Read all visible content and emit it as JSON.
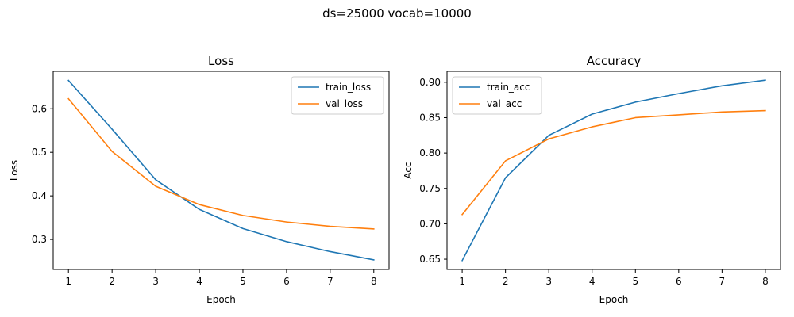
{
  "figure": {
    "suptitle": "ds=25000 vocab=10000"
  },
  "chart_data": [
    {
      "type": "line",
      "title": "Loss",
      "xlabel": "Epoch",
      "ylabel": "Loss",
      "x": [
        1,
        2,
        3,
        4,
        5,
        6,
        7,
        8
      ],
      "xlim": [
        0.65,
        8.35
      ],
      "ylim": [
        0.231,
        0.686
      ],
      "xticks": [
        1,
        2,
        3,
        4,
        5,
        6,
        7,
        8
      ],
      "yticks": [
        0.3,
        0.4,
        0.5,
        0.6
      ],
      "ytick_labels": [
        "0.3",
        "0.4",
        "0.5",
        "0.6"
      ],
      "grid": false,
      "legend": "top-right",
      "series": [
        {
          "name": "train_loss",
          "color": "#1f77b4",
          "values": [
            0.665,
            0.553,
            0.437,
            0.369,
            0.325,
            0.295,
            0.272,
            0.253
          ]
        },
        {
          "name": "val_loss",
          "color": "#ff7f0e",
          "values": [
            0.623,
            0.502,
            0.422,
            0.38,
            0.355,
            0.34,
            0.33,
            0.324
          ]
        }
      ]
    },
    {
      "type": "line",
      "title": "Accuracy",
      "xlabel": "Epoch",
      "ylabel": "Acc",
      "x": [
        1,
        2,
        3,
        4,
        5,
        6,
        7,
        8
      ],
      "xlim": [
        0.65,
        8.35
      ],
      "ylim": [
        0.6355,
        0.9155
      ],
      "xticks": [
        1,
        2,
        3,
        4,
        5,
        6,
        7,
        8
      ],
      "yticks": [
        0.65,
        0.7,
        0.75,
        0.8,
        0.85,
        0.9
      ],
      "ytick_labels": [
        "0.65",
        "0.70",
        "0.75",
        "0.80",
        "0.85",
        "0.90"
      ],
      "grid": false,
      "legend": "top-left",
      "series": [
        {
          "name": "train_acc",
          "color": "#1f77b4",
          "values": [
            0.648,
            0.765,
            0.825,
            0.855,
            0.872,
            0.884,
            0.895,
            0.903
          ]
        },
        {
          "name": "val_acc",
          "color": "#ff7f0e",
          "values": [
            0.713,
            0.789,
            0.82,
            0.837,
            0.85,
            0.854,
            0.858,
            0.86
          ]
        }
      ]
    }
  ]
}
